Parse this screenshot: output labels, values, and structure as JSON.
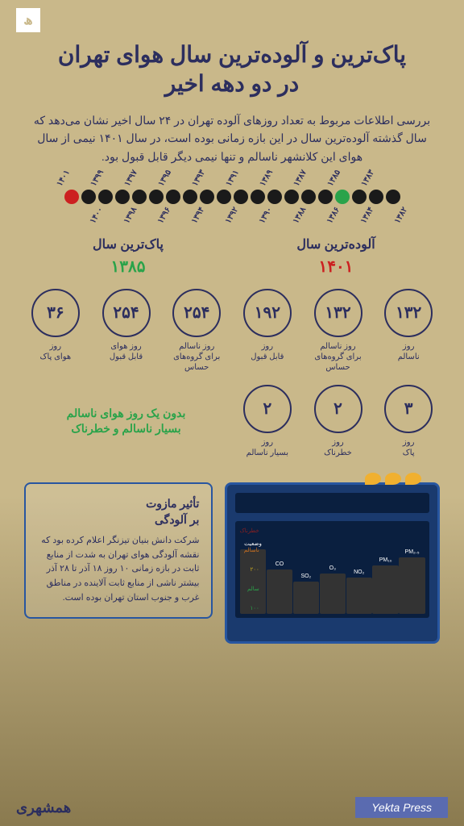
{
  "title_line1": "پاک‌ترین و آلوده‌ترین سال هوای تهران",
  "title_line2": "در دو دهه اخیر",
  "intro": "بررسی اطلاعات مربوط به تعداد روزهای آلوده تهران در ۲۴ سال اخیر نشان می‌دهد که سال گذشته آلوده‌ترین سال در این بازه زمانی بوده است، در سال ۱۴۰۱ نیمی از سال هوای این کلانشهر ناسالم و تنها نیمی دیگر قابل قبول بود.",
  "timeline": {
    "years": [
      "۱۴۰۱",
      "۱۴۰۰",
      "۱۳۹۹",
      "۱۳۹۸",
      "۱۳۹۷",
      "۱۳۹۶",
      "۱۳۹۵",
      "۱۳۹۴",
      "۱۳۹۳",
      "۱۳۹۲",
      "۱۳۹۱",
      "۱۳۹۰",
      "۱۳۸۹",
      "۱۳۸۸",
      "۱۳۸۷",
      "۱۳۸۶",
      "۱۳۸۵",
      "۱۳۸۴",
      "۱۳۸۳",
      "۱۳۸۲"
    ],
    "colors": [
      "#cc2020",
      "#1a1a1a",
      "#1a1a1a",
      "#1a1a1a",
      "#1a1a1a",
      "#1a1a1a",
      "#1a1a1a",
      "#1a1a1a",
      "#1a1a1a",
      "#1a1a1a",
      "#1a1a1a",
      "#1a1a1a",
      "#1a1a1a",
      "#1a1a1a",
      "#1a1a1a",
      "#1a1a1a",
      "#2aa34a",
      "#1a1a1a",
      "#1a1a1a",
      "#1a1a1a"
    ]
  },
  "polluted": {
    "title": "آلوده‌ترین سال",
    "year": "۱۴۰۱",
    "color": "#cc2020"
  },
  "clean": {
    "title": "پاک‌ترین سال",
    "year": "۱۳۸۵",
    "color": "#2aa34a"
  },
  "stats_row1": [
    {
      "num": "۱۳۲",
      "label": "روز\nناسالم"
    },
    {
      "num": "۱۳۲",
      "label": "روز ناسالم\nبرای گروه‌های\nحساس"
    },
    {
      "num": "۱۹۲",
      "label": "روز\nقابل قبول"
    },
    {
      "num": "۲۵۴",
      "label": "روز ناسالم\nبرای گروه‌های\nحساس"
    },
    {
      "num": "۲۵۴",
      "label": "روز هوای\nقابل قبول"
    },
    {
      "num": "۳۶",
      "label": "روز\nهوای پاک"
    }
  ],
  "stats_row2": [
    {
      "num": "۳",
      "label": "روز\nپاک"
    },
    {
      "num": "۲",
      "label": "روز\nخطرناک"
    },
    {
      "num": "۲",
      "label": "روز\nبسیار ناسالم"
    }
  ],
  "green_note": "بدون یک روز هوای ناسالم\nبسیار ناسالم و خطرناک",
  "billboard": {
    "pollutants": [
      "PM₂.₅",
      "PM₁₀",
      "NO₂",
      "O₃",
      "SO₂",
      "CO",
      "وضعیت"
    ],
    "heights": [
      70,
      60,
      45,
      50,
      40,
      55,
      80
    ],
    "scale": [
      {
        "label": "خطرناک",
        "color": "#8b2020"
      },
      {
        "label": "ناسالم",
        "color": "#cc7020"
      },
      {
        "label": "۲۰۰",
        "color": "#ccaa20"
      },
      {
        "label": "سالم",
        "color": "#2aa34a"
      },
      {
        "label": "۱۰۰",
        "color": "#2aa34a"
      }
    ]
  },
  "info": {
    "title": "تأثیر مازوت\nبر آلودگی",
    "text": "شرکت دانش بنیان تیزنگر اعلام کرده بود که نقشه آلودگی هوای تهران به شدت از منابع ثابت در بازه زمانی ۱۰ روز ۱۸ آذر تا ۲۸ آذر بیشتر ناشی از منابع ثابت آلاینده در مناطق غرب و جنوب استان تهران بوده است."
  },
  "press": "Yekta Press",
  "hamshahri": "همشهری",
  "logo": "ھ"
}
